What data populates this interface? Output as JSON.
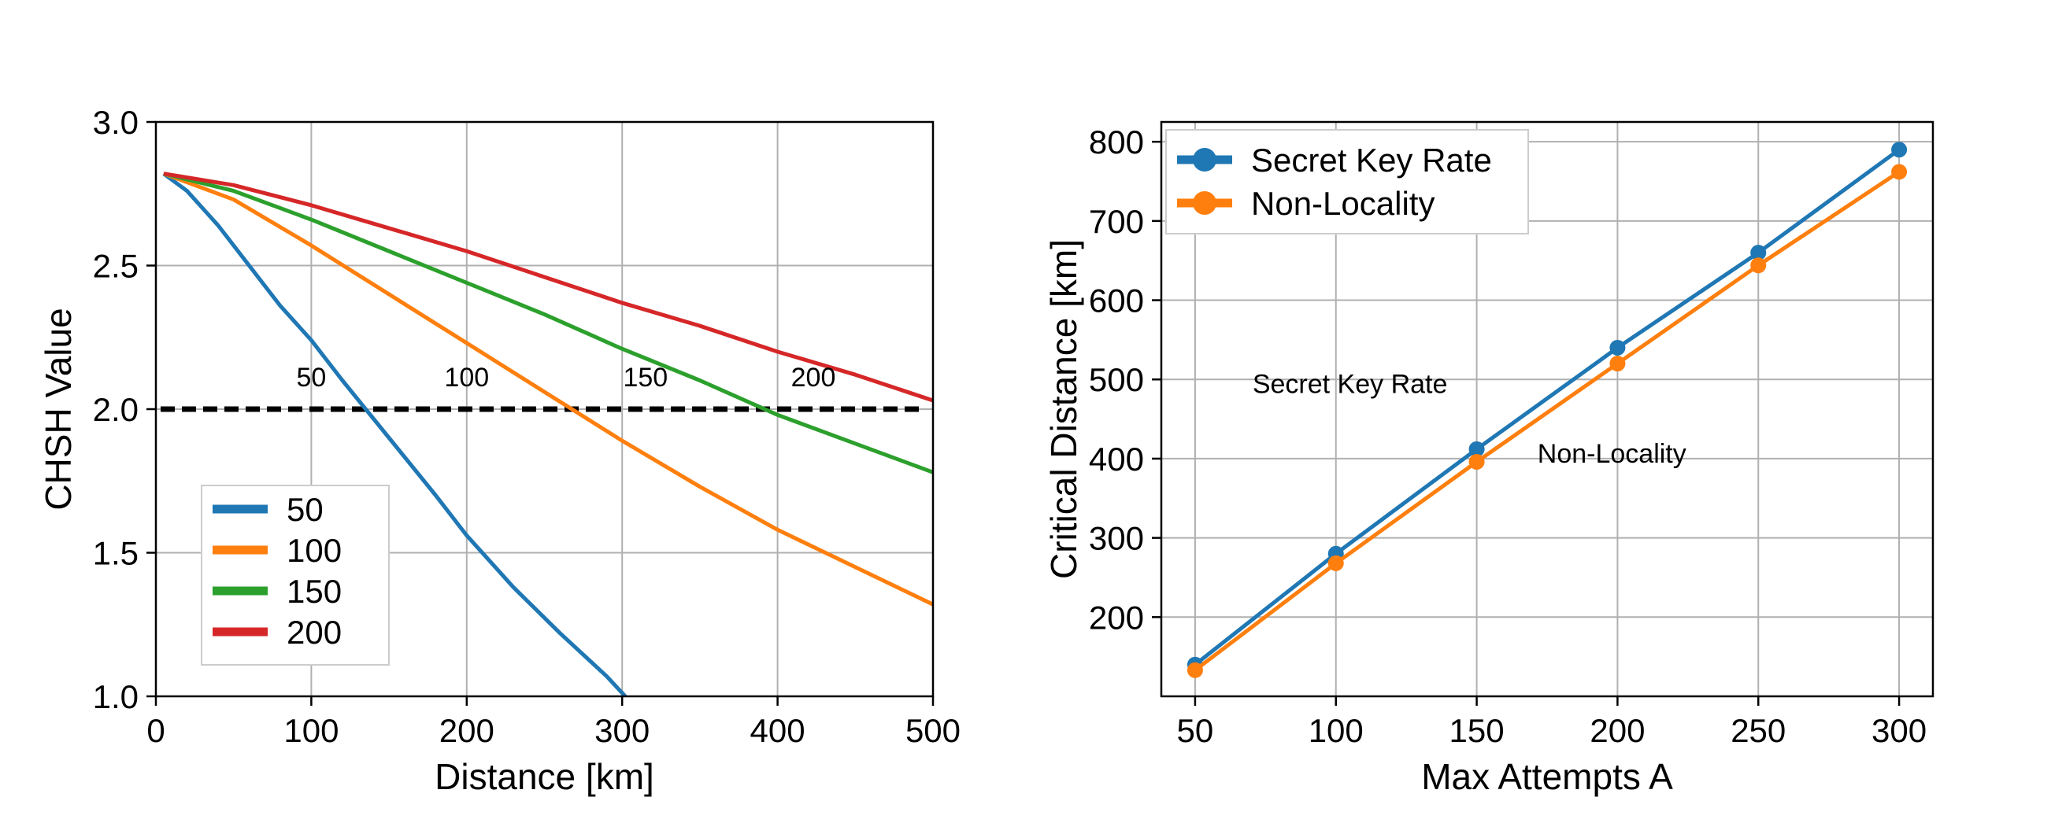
{
  "chart_data": [
    {
      "type": "line",
      "xlabel": "Distance [km]",
      "ylabel": "CHSH Value",
      "xlim": [
        0,
        500
      ],
      "ylim": [
        1.0,
        3.0
      ],
      "xticks": [
        0,
        100,
        200,
        300,
        400,
        500
      ],
      "yticks": [
        1.0,
        1.5,
        2.0,
        2.5,
        3.0
      ],
      "ytick_labels": [
        "1.0",
        "1.5",
        "2.0",
        "2.5",
        "3.0"
      ],
      "grid": true,
      "legend_position": "lower-left",
      "threshold": {
        "y": 2.0,
        "style": "dashed",
        "color": "#000000"
      },
      "series": [
        {
          "name": "50",
          "color": "#1f77b4",
          "x": [
            5,
            20,
            40,
            60,
            80,
            100,
            120,
            150,
            180,
            200,
            230,
            260,
            290,
            302
          ],
          "y": [
            2.82,
            2.76,
            2.64,
            2.5,
            2.36,
            2.24,
            2.1,
            1.9,
            1.7,
            1.56,
            1.38,
            1.22,
            1.07,
            1.0
          ]
        },
        {
          "name": "100",
          "color": "#ff7f0e",
          "x": [
            5,
            50,
            100,
            150,
            200,
            250,
            300,
            350,
            400,
            450,
            500
          ],
          "y": [
            2.82,
            2.73,
            2.57,
            2.4,
            2.23,
            2.06,
            1.89,
            1.73,
            1.58,
            1.45,
            1.32
          ]
        },
        {
          "name": "150",
          "color": "#2ca02c",
          "x": [
            5,
            50,
            100,
            150,
            200,
            250,
            300,
            350,
            400,
            450,
            500
          ],
          "y": [
            2.82,
            2.76,
            2.66,
            2.55,
            2.44,
            2.33,
            2.21,
            2.1,
            1.98,
            1.88,
            1.78
          ]
        },
        {
          "name": "200",
          "color": "#d62728",
          "x": [
            5,
            50,
            100,
            150,
            200,
            250,
            300,
            350,
            400,
            450,
            500
          ],
          "y": [
            2.82,
            2.78,
            2.71,
            2.63,
            2.55,
            2.46,
            2.37,
            2.29,
            2.2,
            2.12,
            2.03
          ]
        }
      ],
      "annotations": [
        {
          "text": "50",
          "x": 100,
          "y": 2.08
        },
        {
          "text": "100",
          "x": 200,
          "y": 2.08
        },
        {
          "text": "150",
          "x": 315,
          "y": 2.08
        },
        {
          "text": "200",
          "x": 423,
          "y": 2.08
        }
      ]
    },
    {
      "type": "line",
      "xlabel": "Max Attempts A",
      "ylabel": "Critical Distance [km]",
      "xlim": [
        38,
        312
      ],
      "ylim": [
        100,
        825
      ],
      "xticks": [
        50,
        100,
        150,
        200,
        250,
        300
      ],
      "yticks": [
        200,
        300,
        400,
        500,
        600,
        700,
        800
      ],
      "grid": true,
      "legend_position": "top-left",
      "markers": true,
      "series": [
        {
          "name": "Secret Key Rate",
          "color": "#1f77b4",
          "x": [
            50,
            100,
            150,
            200,
            250,
            300
          ],
          "y": [
            140,
            280,
            412,
            540,
            660,
            790
          ]
        },
        {
          "name": "Non-Locality",
          "color": "#ff7f0e",
          "x": [
            50,
            100,
            150,
            200,
            250,
            300
          ],
          "y": [
            133,
            268,
            396,
            520,
            644,
            762
          ]
        }
      ],
      "annotations": [
        {
          "text": "Secret Key Rate",
          "x": 105,
          "y": 483
        },
        {
          "text": "Non-Locality",
          "x": 198,
          "y": 395
        }
      ]
    }
  ]
}
